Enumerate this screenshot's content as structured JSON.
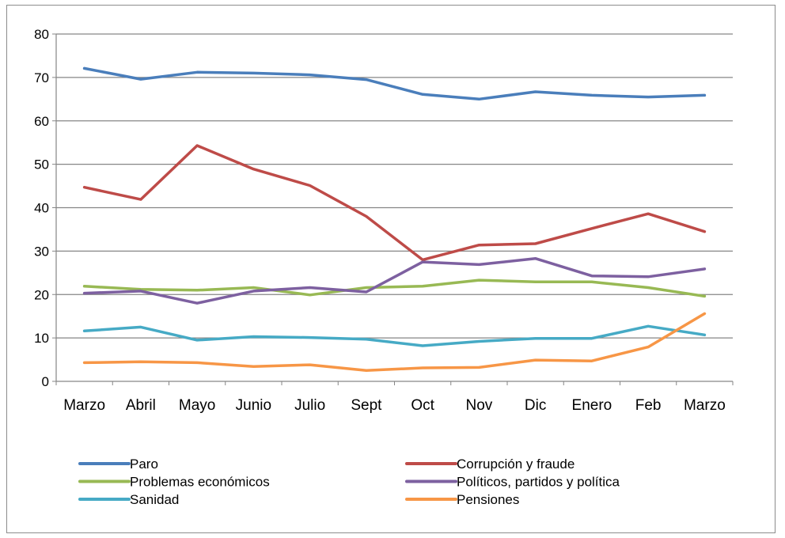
{
  "chart_data": {
    "type": "line",
    "categories": [
      "Marzo",
      "Abril",
      "Mayo",
      "Junio",
      "Julio",
      "Sept",
      "Oct",
      "Nov",
      "Dic",
      "Enero",
      "Feb",
      "Marzo"
    ],
    "ylim": [
      0,
      80
    ],
    "yticks": [
      0,
      10,
      20,
      30,
      40,
      50,
      60,
      70,
      80
    ],
    "grid": true,
    "legend_position": "bottom",
    "series": [
      {
        "name": "Paro",
        "color": "#4a7ebb",
        "values": [
          72.1,
          69.6,
          71.2,
          71.0,
          70.6,
          69.5,
          66.1,
          65.0,
          66.7,
          65.9,
          65.5,
          65.9
        ]
      },
      {
        "name": "Corrupción y fraude",
        "color": "#be4b48",
        "values": [
          44.7,
          41.9,
          54.3,
          48.9,
          45.1,
          38.0,
          28.0,
          31.4,
          31.7,
          35.2,
          38.6,
          34.5
        ]
      },
      {
        "name": "Problemas económicos",
        "color": "#98b954",
        "values": [
          21.9,
          21.2,
          21.0,
          21.6,
          19.9,
          21.6,
          21.9,
          23.3,
          22.9,
          22.9,
          21.6,
          19.6
        ]
      },
      {
        "name": "Políticos, partidos y política",
        "color": "#7d60a0",
        "values": [
          20.3,
          20.8,
          18.0,
          20.8,
          21.6,
          20.6,
          27.5,
          26.9,
          28.3,
          24.3,
          24.1,
          25.9
        ]
      },
      {
        "name": "Sanidad",
        "color": "#46aac5",
        "values": [
          11.6,
          12.5,
          9.5,
          10.3,
          10.1,
          9.7,
          8.2,
          9.2,
          9.9,
          9.9,
          12.7,
          10.7
        ]
      },
      {
        "name": "Pensiones",
        "color": "#f79646",
        "values": [
          4.3,
          4.5,
          4.3,
          3.4,
          3.8,
          2.5,
          3.1,
          3.2,
          4.9,
          4.7,
          7.9,
          15.6
        ]
      }
    ]
  }
}
